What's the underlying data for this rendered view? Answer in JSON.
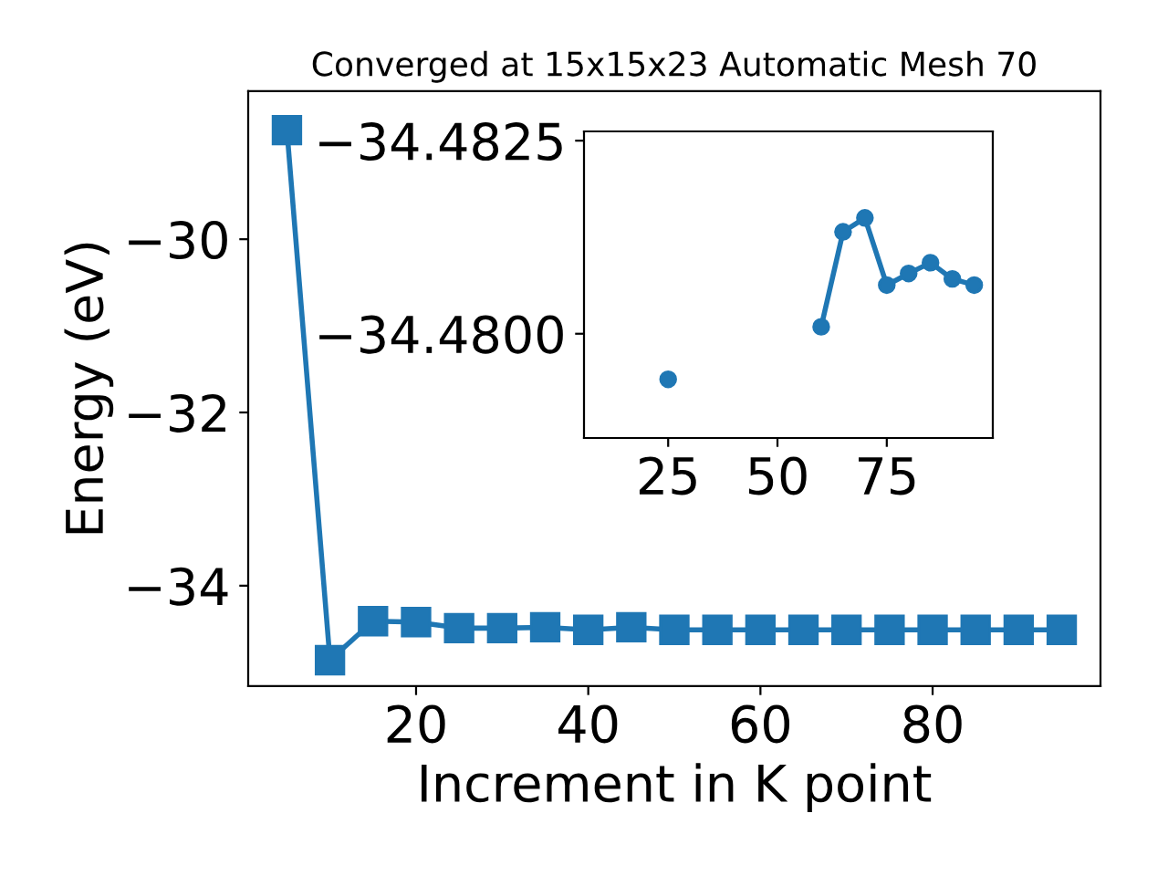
{
  "chart_data": [
    {
      "type": "line",
      "title": "Converged at 15x15x23 Automatic Mesh 70",
      "xlabel": "Increment in K point",
      "ylabel": "Energy (eV)",
      "x": [
        5,
        10,
        15,
        20,
        25,
        30,
        35,
        40,
        45,
        50,
        55,
        60,
        65,
        70,
        75,
        80,
        85,
        90,
        95
      ],
      "series": [
        {
          "color": "#1f77b4",
          "values": [
            -28.74,
            -34.86,
            -34.41,
            -34.42,
            -34.49,
            -34.49,
            -34.48,
            -34.51,
            -34.48,
            -34.51,
            -34.51,
            -34.51,
            -34.51,
            -34.51,
            -34.51,
            -34.51,
            -34.51,
            -34.51,
            -34.51
          ]
        }
      ],
      "xlim": [
        0.5,
        99.5
      ],
      "ylim": [
        -35.16,
        -28.29
      ],
      "xticks": [
        20,
        40,
        60,
        80
      ],
      "yticks": [
        {
          "value": -34,
          "label": "−34"
        },
        {
          "value": -32,
          "label": "−32"
        },
        {
          "value": -30,
          "label": "−30"
        }
      ],
      "marker": "square",
      "line_style": "solid"
    },
    {
      "type": "line",
      "x": [
        25,
        30,
        35,
        40,
        45,
        50,
        55,
        60,
        65,
        70,
        75,
        80,
        85,
        90,
        95
      ],
      "series": [
        {
          "color": "#1f77b4",
          "values": [
            -34.47941,
            null,
            null,
            null,
            null,
            null,
            null,
            -34.48009,
            -34.48132,
            -34.4815,
            -34.48063,
            -34.48078,
            -34.48092,
            -34.48071,
            -34.48063
          ]
        }
      ],
      "xlim": [
        5.75,
        99.25
      ],
      "ylim": [
        -34.47865,
        -34.48262
      ],
      "xticks": [
        25,
        50,
        75
      ],
      "yticks": [
        {
          "value": -34.4825,
          "label": "−34.4825"
        },
        {
          "value": -34.48,
          "label": "−34.4800"
        }
      ],
      "marker": "circle",
      "line_style": "solid"
    }
  ]
}
